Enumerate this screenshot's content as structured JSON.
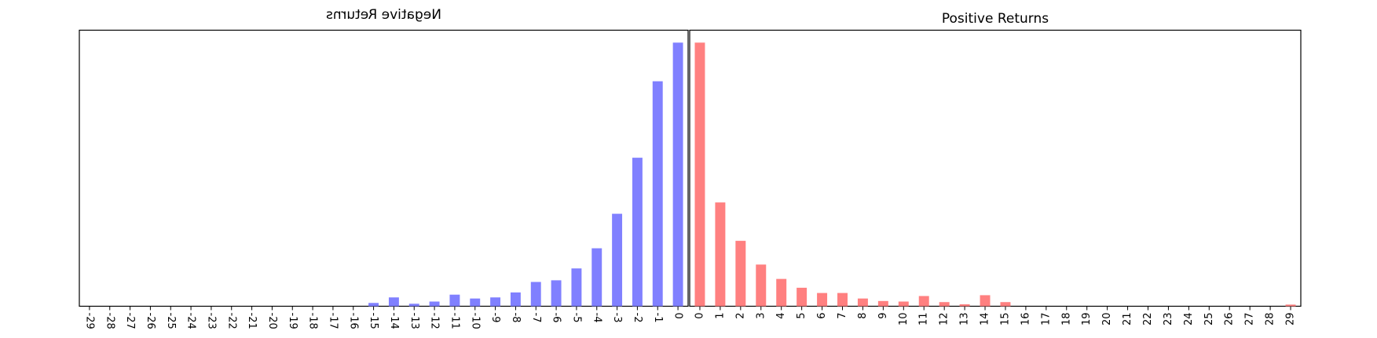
{
  "chart_data": [
    {
      "type": "bar",
      "title": "Negative Returns",
      "mirrored": true,
      "color": "#8080ff",
      "categories": [
        "-29",
        "-28",
        "-27",
        "-26",
        "-25",
        "-24",
        "-23",
        "-22",
        "-21",
        "-20",
        "-19",
        "-18",
        "-17",
        "-16",
        "-15",
        "-14",
        "-13",
        "-12",
        "-11",
        "-10",
        "-9",
        "-8",
        "-7",
        "-6",
        "-5",
        "-4",
        "-3",
        "-2",
        "-1",
        "0"
      ],
      "values": [
        0,
        0,
        0,
        0,
        0,
        0,
        0,
        0,
        0,
        0,
        0,
        0,
        0,
        0,
        1.2,
        3.2,
        0.9,
        1.7,
        4.2,
        2.8,
        3.2,
        5.0,
        8.8,
        9.4,
        13.7,
        21.0,
        33.5,
        53.8,
        81.5,
        95.5
      ],
      "ylim": [
        0,
        100
      ],
      "xlabel": "",
      "ylabel": "",
      "grid": false
    },
    {
      "type": "bar",
      "title": "Positive Returns",
      "mirrored": false,
      "color": "#ff8080",
      "categories": [
        "0",
        "1",
        "2",
        "3",
        "4",
        "5",
        "6",
        "7",
        "8",
        "9",
        "10",
        "11",
        "12",
        "13",
        "14",
        "15",
        "16",
        "17",
        "18",
        "19",
        "20",
        "21",
        "22",
        "23",
        "24",
        "25",
        "26",
        "27",
        "28",
        "29"
      ],
      "values": [
        95.5,
        37.6,
        23.7,
        15.1,
        9.9,
        6.7,
        4.8,
        4.8,
        2.8,
        1.9,
        1.7,
        3.7,
        1.5,
        0.7,
        4.0,
        1.5,
        0,
        0,
        0,
        0,
        0,
        0,
        0,
        0,
        0,
        0,
        0,
        0,
        0,
        0.6
      ],
      "ylim": [
        0,
        100
      ],
      "xlabel": "",
      "ylabel": "",
      "grid": false
    }
  ]
}
